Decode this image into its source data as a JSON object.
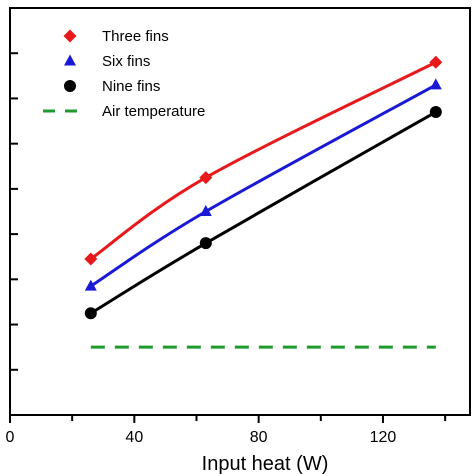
{
  "chart_data": {
    "type": "line",
    "xlabel": "Input heat (W)",
    "ylabel": "",
    "xlim": [
      0,
      148
    ],
    "ylim": [
      0,
      9
    ],
    "x_ticks": [
      0,
      40,
      80,
      120
    ],
    "y_ticks": [
      1,
      2,
      3,
      4,
      5,
      6,
      7,
      8
    ],
    "x": [
      26,
      63,
      137
    ],
    "series": [
      {
        "name": "Three fins",
        "values": [
          3.45,
          5.25,
          7.8
        ],
        "color": "#e8191b",
        "marker": "diamond",
        "line": "solid"
      },
      {
        "name": "Six fins",
        "values": [
          2.85,
          4.5,
          7.3
        ],
        "color": "#1a1ad6",
        "marker": "triangle",
        "line": "solid"
      },
      {
        "name": "Nine fins",
        "values": [
          2.25,
          3.8,
          6.7
        ],
        "color": "#000000",
        "marker": "circle",
        "line": "solid"
      },
      {
        "name": "Air temperature",
        "values": [
          1.5,
          1.5,
          1.5
        ],
        "color": "#1f9a2e",
        "marker": "none",
        "line": "dashed"
      }
    ],
    "legend_position": "top-left",
    "grid": false
  }
}
